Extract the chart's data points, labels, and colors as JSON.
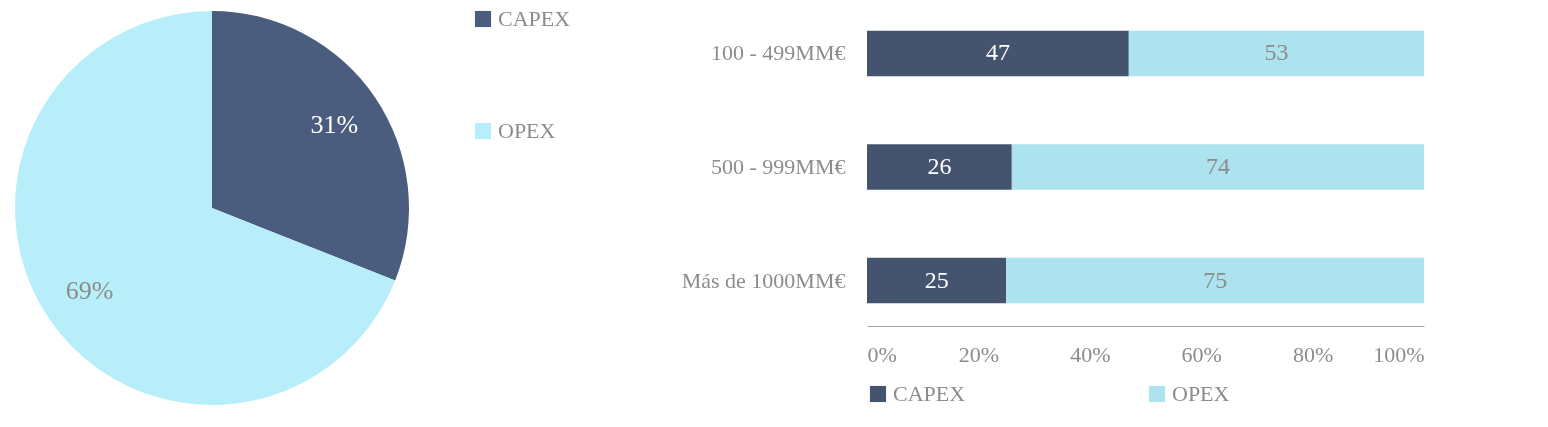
{
  "chart_data": [
    {
      "type": "pie",
      "categories": [
        "CAPEX",
        "OPEX"
      ],
      "values": [
        31,
        69
      ],
      "colors": [
        "#4a5d7e",
        "#b8eefa"
      ],
      "value_labels": [
        "31%",
        "69%"
      ],
      "legend": "right"
    },
    {
      "type": "bar",
      "orientation": "horizontal",
      "stacked": true,
      "categories": [
        "100 - 499MM€",
        "500 - 999MM€",
        "Más de 1000MM€"
      ],
      "series": [
        {
          "name": "CAPEX",
          "color": "#44546f",
          "values": [
            47,
            26,
            25
          ]
        },
        {
          "name": "OPEX",
          "color": "#ade3ee",
          "values": [
            53,
            74,
            75
          ]
        }
      ],
      "xlim": [
        0,
        100
      ],
      "xticks": [
        {
          "value": 0,
          "label": "0%"
        },
        {
          "value": 20,
          "label": "20%"
        },
        {
          "value": 40,
          "label": "40%"
        },
        {
          "value": 60,
          "label": "60%"
        },
        {
          "value": 80,
          "label": "80%"
        },
        {
          "value": 100,
          "label": "100%"
        }
      ],
      "data_labels": true,
      "grid": false,
      "legend": "bottom"
    }
  ]
}
